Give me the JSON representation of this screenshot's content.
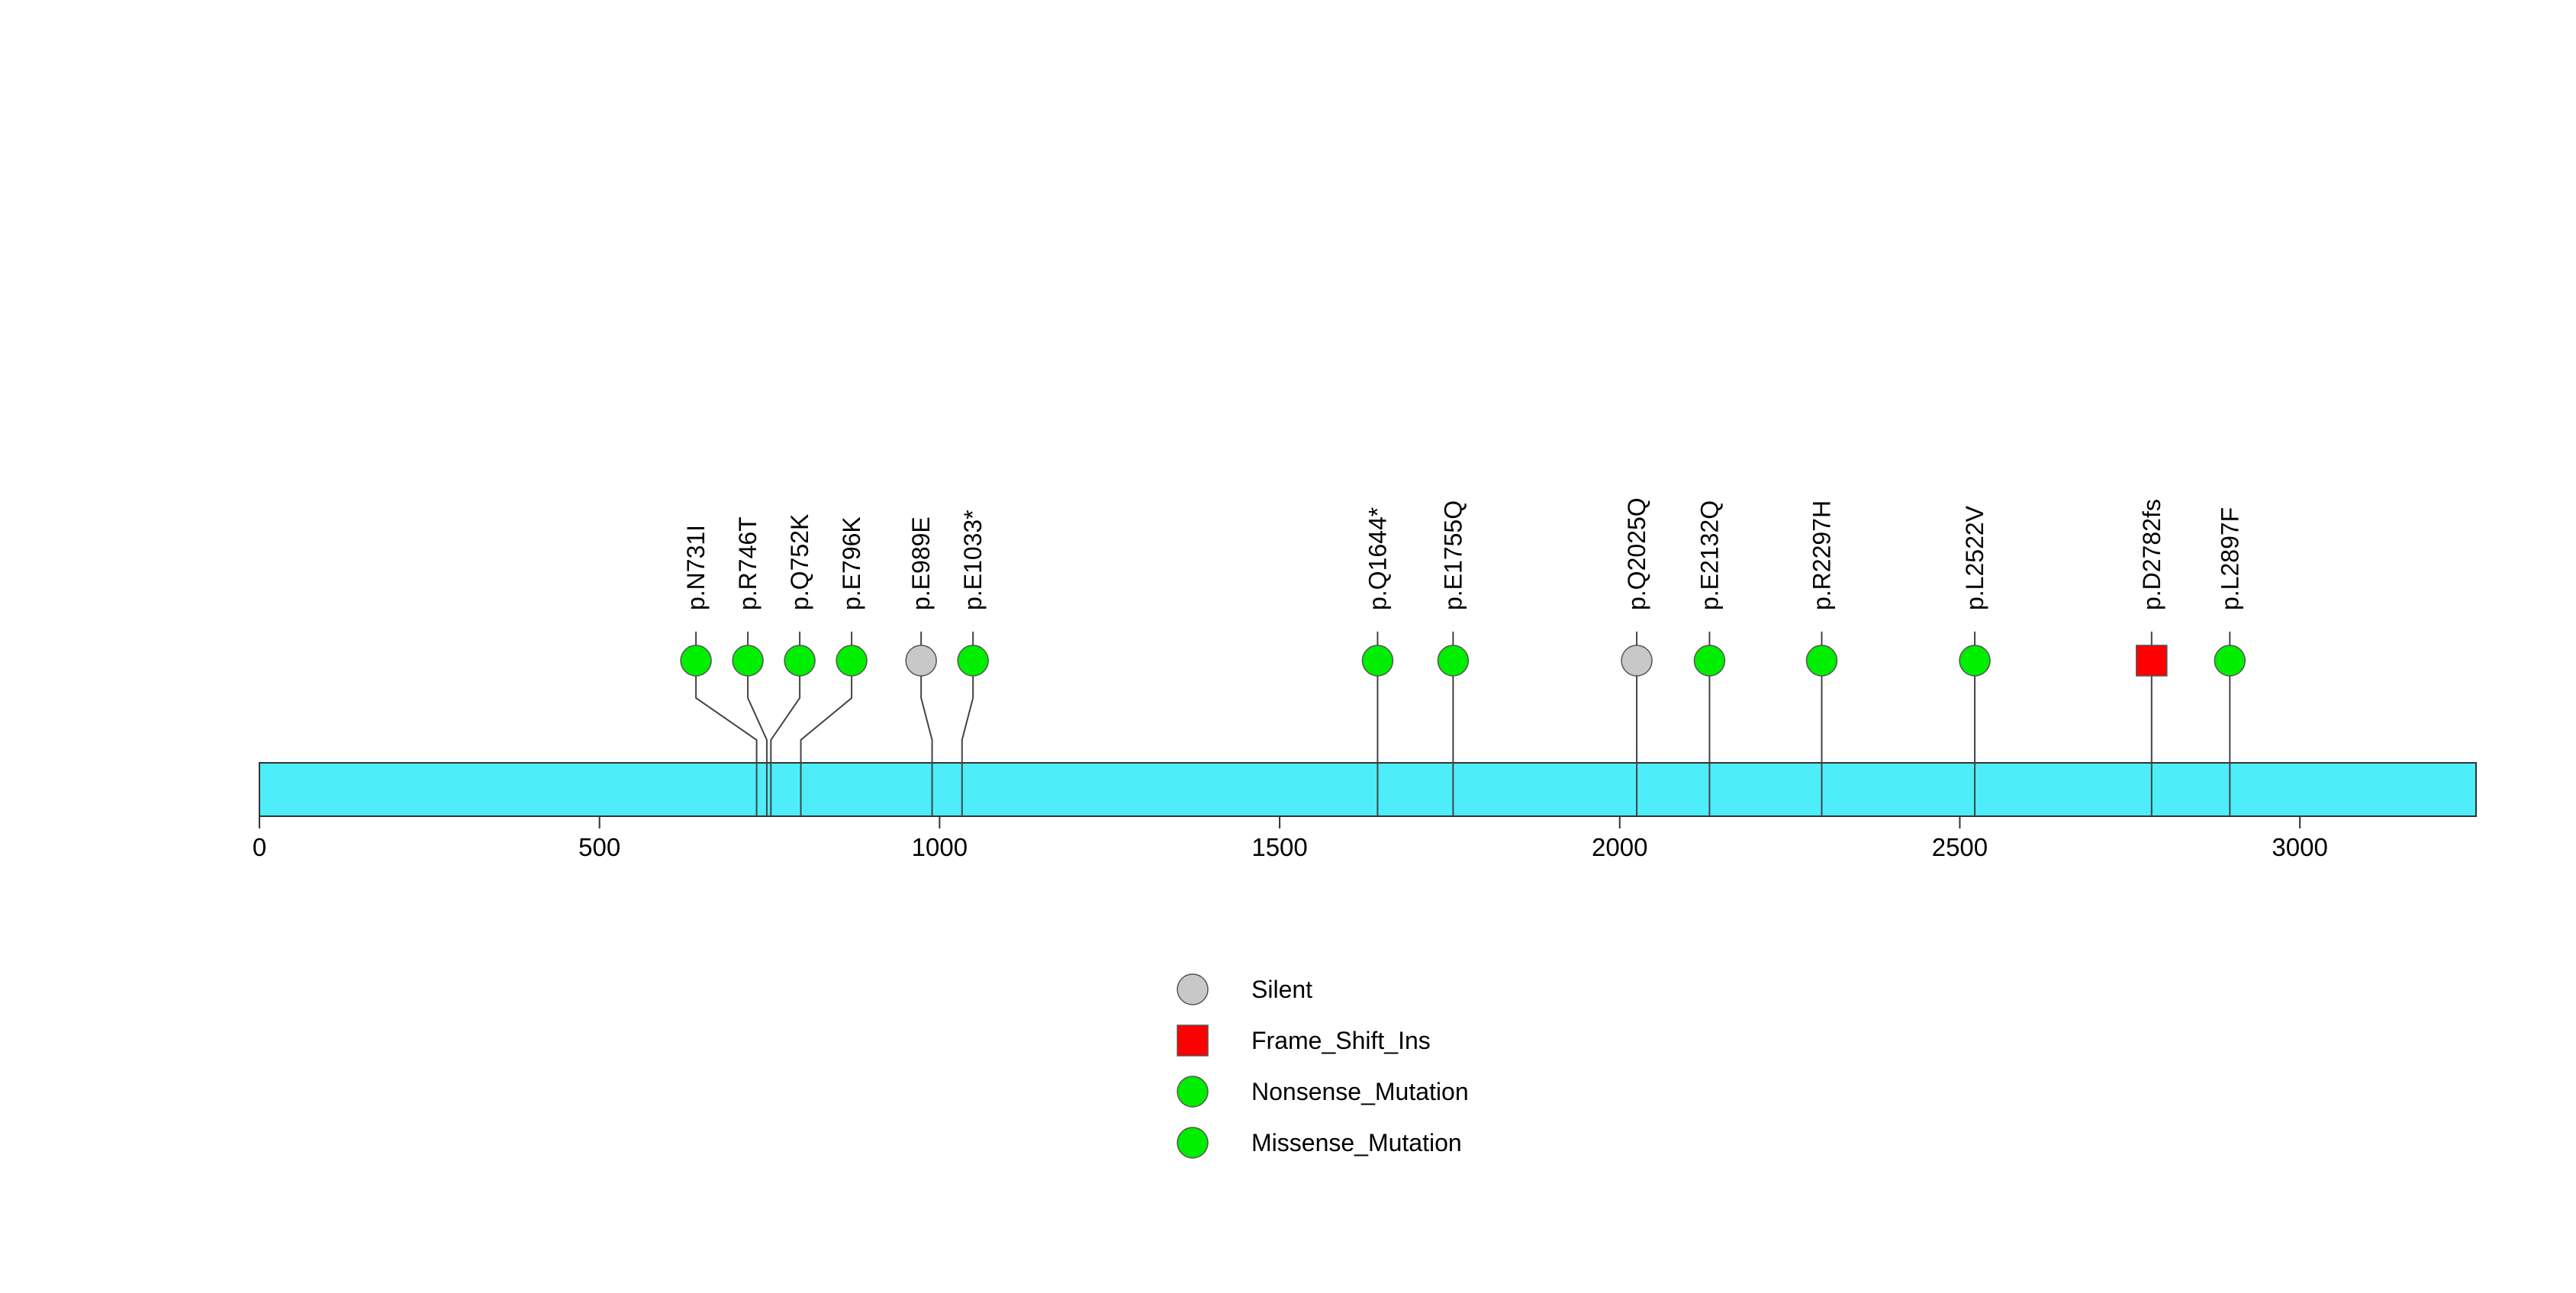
{
  "chart_data": {
    "type": "lollipop",
    "protein_length": 3259,
    "xlim": [
      0,
      3259
    ],
    "x_ticks": [
      0,
      500,
      1000,
      1500,
      2000,
      2500,
      3000
    ],
    "x_tick_labels": [
      "0",
      "500",
      "1000",
      "1500",
      "2000",
      "2500",
      "3000"
    ],
    "grid": false,
    "legend_placement": "bottom-center",
    "mutations": [
      {
        "label": "p.N731I",
        "position": 731,
        "type": "Missense_Mutation"
      },
      {
        "label": "p.R746T",
        "position": 746,
        "type": "Missense_Mutation"
      },
      {
        "label": "p.Q752K",
        "position": 752,
        "type": "Missense_Mutation"
      },
      {
        "label": "p.E796K",
        "position": 796,
        "type": "Missense_Mutation"
      },
      {
        "label": "p.E989E",
        "position": 989,
        "type": "Silent"
      },
      {
        "label": "p.E1033*",
        "position": 1033,
        "type": "Nonsense_Mutation"
      },
      {
        "label": "p.Q1644*",
        "position": 1644,
        "type": "Nonsense_Mutation"
      },
      {
        "label": "p.E1755Q",
        "position": 1755,
        "type": "Missense_Mutation"
      },
      {
        "label": "p.Q2025Q",
        "position": 2025,
        "type": "Silent"
      },
      {
        "label": "p.E2132Q",
        "position": 2132,
        "type": "Missense_Mutation"
      },
      {
        "label": "p.R2297H",
        "position": 2297,
        "type": "Missense_Mutation"
      },
      {
        "label": "p.L2522V",
        "position": 2522,
        "type": "Missense_Mutation"
      },
      {
        "label": "p.D2782fs",
        "position": 2782,
        "type": "Frame_Shift_Ins"
      },
      {
        "label": "p.L2897F",
        "position": 2897,
        "type": "Missense_Mutation"
      }
    ],
    "legend": [
      {
        "label": "Silent",
        "shape": "circle",
        "color": "#c8c8c8"
      },
      {
        "label": "Frame_Shift_Ins",
        "shape": "square",
        "color": "#ff0000"
      },
      {
        "label": "Nonsense_Mutation",
        "shape": "circle",
        "color": "#00ee00"
      },
      {
        "label": "Missense_Mutation",
        "shape": "circle",
        "color": "#00ee00"
      }
    ],
    "colors": {
      "protein_bar": "#4deefa",
      "Silent": "#c8c8c8",
      "Frame_Shift_Ins": "#ff0000",
      "Nonsense_Mutation": "#00ee00",
      "Missense_Mutation": "#00ee00"
    }
  }
}
